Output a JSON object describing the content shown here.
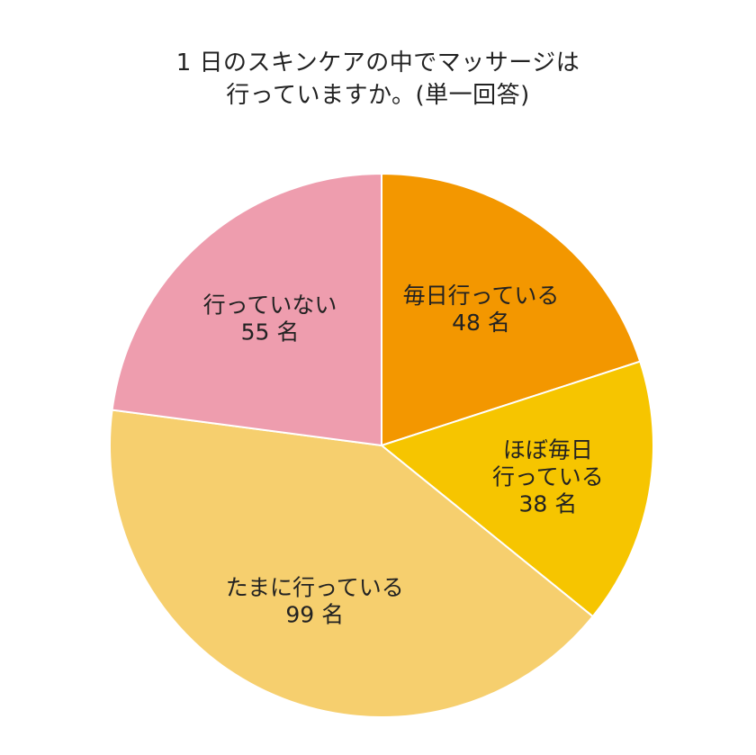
{
  "chart_data": {
    "type": "pie",
    "title_lines": [
      "1 日のスキンケアの中でマッサージは",
      "行っていますか。(単一回答)"
    ],
    "unit": "名",
    "slices": [
      {
        "label_lines": [
          "毎日行っている"
        ],
        "value": 48,
        "value_text": "48 名",
        "color": "#f39700"
      },
      {
        "label_lines": [
          "ほぼ毎日",
          "行っている"
        ],
        "value": 38,
        "value_text": "38 名",
        "color": "#f6c500"
      },
      {
        "label_lines": [
          "たまに行っている"
        ],
        "value": 99,
        "value_text": "99 名",
        "color": "#f6cf6e"
      },
      {
        "label_lines": [
          "行っていない"
        ],
        "value": 55,
        "value_text": "55 名",
        "color": "#ee9dae"
      }
    ],
    "start": "12 o'clock",
    "direction": "clockwise",
    "legend": "none",
    "slice_border_color": "#ffffff"
  }
}
